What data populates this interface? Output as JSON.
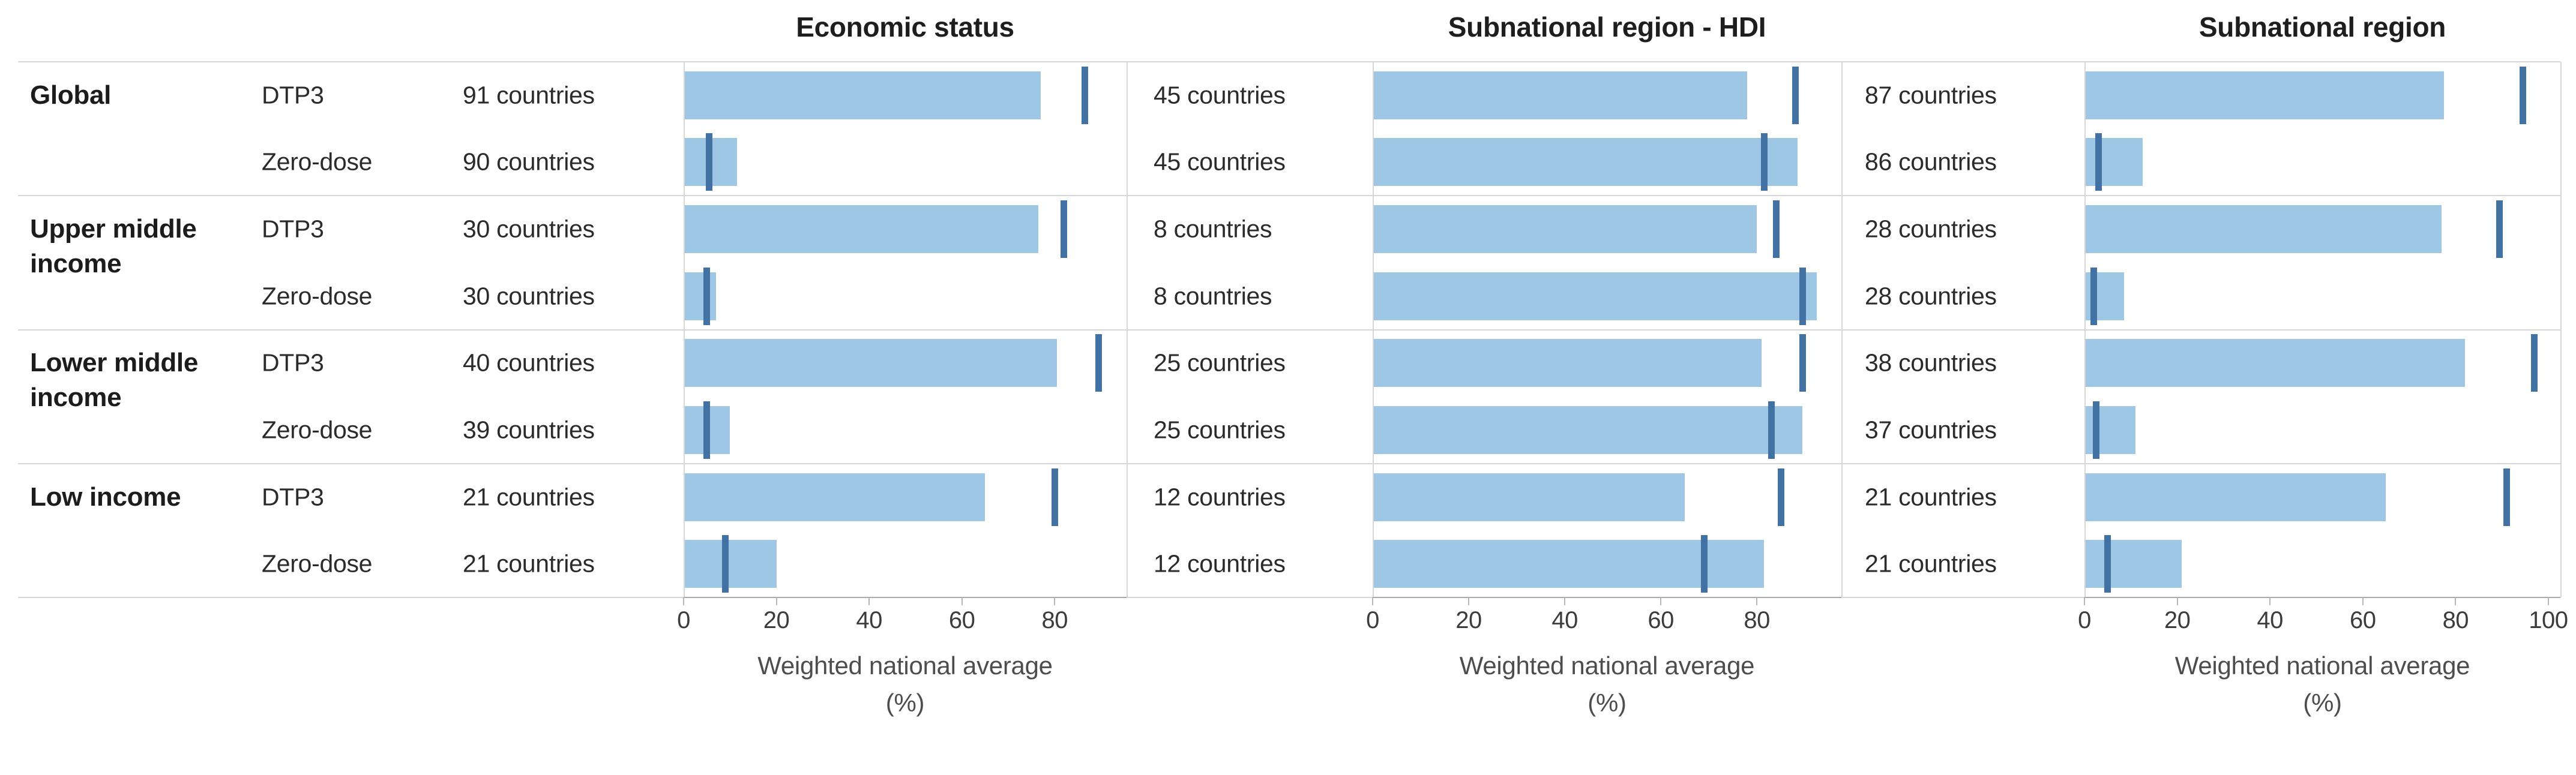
{
  "chart_data": {
    "type": "bar",
    "orientation": "horizontal",
    "description": "Weighted national average coverage bars with dark reference-line markers, by economic status group and vaccine indicator",
    "colors": {
      "bar": "#9ec6e5",
      "marker": "#4272a3",
      "separator": "#d6d6d6",
      "axis_line": "#a9a9a9",
      "tick_mark": "#b6b6b6",
      "title_text": "#1e1e1e",
      "label_text": "#2b2b2b",
      "tick_text": "#3c3c3c",
      "axis_title_text": "#4d4d4d"
    },
    "groups": [
      {
        "label_lines": [
          "Global"
        ],
        "rows": [
          {
            "vaccine": "DTP3"
          },
          {
            "vaccine": "Zero-dose"
          }
        ]
      },
      {
        "label_lines": [
          "Upper middle",
          "income"
        ],
        "rows": [
          {
            "vaccine": "DTP3"
          },
          {
            "vaccine": "Zero-dose"
          }
        ]
      },
      {
        "label_lines": [
          "Lower middle",
          "income"
        ],
        "rows": [
          {
            "vaccine": "DTP3"
          },
          {
            "vaccine": "Zero-dose"
          }
        ]
      },
      {
        "label_lines": [
          "Low income"
        ],
        "rows": [
          {
            "vaccine": "DTP3"
          },
          {
            "vaccine": "Zero-dose"
          }
        ]
      }
    ],
    "xlabel_lines": [
      "Weighted national average",
      "(%)"
    ],
    "panels": [
      {
        "title": "Economic status",
        "xticks": [
          0,
          20,
          40,
          60,
          80
        ],
        "xmax": 95.5,
        "rows": [
          {
            "countries": "91 countries",
            "bar": 77,
            "marker": 86.5
          },
          {
            "countries": "90 countries",
            "bar": 11.5,
            "marker": 5.5
          },
          {
            "countries": "30 countries",
            "bar": 76.5,
            "marker": 82
          },
          {
            "countries": "30 countries",
            "bar": 7,
            "marker": 5
          },
          {
            "countries": "40 countries",
            "bar": 80.5,
            "marker": 89.5
          },
          {
            "countries": "39 countries",
            "bar": 10,
            "marker": 5
          },
          {
            "countries": "21 countries",
            "bar": 65,
            "marker": 80
          },
          {
            "countries": "21 countries",
            "bar": 20,
            "marker": 9
          }
        ]
      },
      {
        "title": "Subnational region - HDI",
        "xticks": [
          0,
          20,
          40,
          60,
          80
        ],
        "xmax": 97.6,
        "rows": [
          {
            "countries": "45 countries",
            "bar": 78,
            "marker": 88
          },
          {
            "countries": "45 countries",
            "bar": 88.5,
            "marker": 81.5
          },
          {
            "countries": "8 countries",
            "bar": 80,
            "marker": 84
          },
          {
            "countries": "8 countries",
            "bar": 92.5,
            "marker": 89.5
          },
          {
            "countries": "25 countries",
            "bar": 81,
            "marker": 89.5
          },
          {
            "countries": "25 countries",
            "bar": 89.5,
            "marker": 83
          },
          {
            "countries": "12 countries",
            "bar": 65,
            "marker": 85
          },
          {
            "countries": "12 countries",
            "bar": 81.5,
            "marker": 69
          }
        ]
      },
      {
        "title": "Subnational region",
        "xticks": [
          0,
          20,
          40,
          60,
          80,
          100
        ],
        "xmax": 102.6,
        "rows": [
          {
            "countries": "87 countries",
            "bar": 77.5,
            "marker": 94.5
          },
          {
            "countries": "86 countries",
            "bar": 12.5,
            "marker": 3
          },
          {
            "countries": "28 countries",
            "bar": 77,
            "marker": 89.5
          },
          {
            "countries": "28 countries",
            "bar": 8.5,
            "marker": 2
          },
          {
            "countries": "38 countries",
            "bar": 82,
            "marker": 97
          },
          {
            "countries": "37 countries",
            "bar": 11,
            "marker": 2.5
          },
          {
            "countries": "21 countries",
            "bar": 65,
            "marker": 91
          },
          {
            "countries": "21 countries",
            "bar": 21,
            "marker": 5
          }
        ]
      }
    ]
  }
}
